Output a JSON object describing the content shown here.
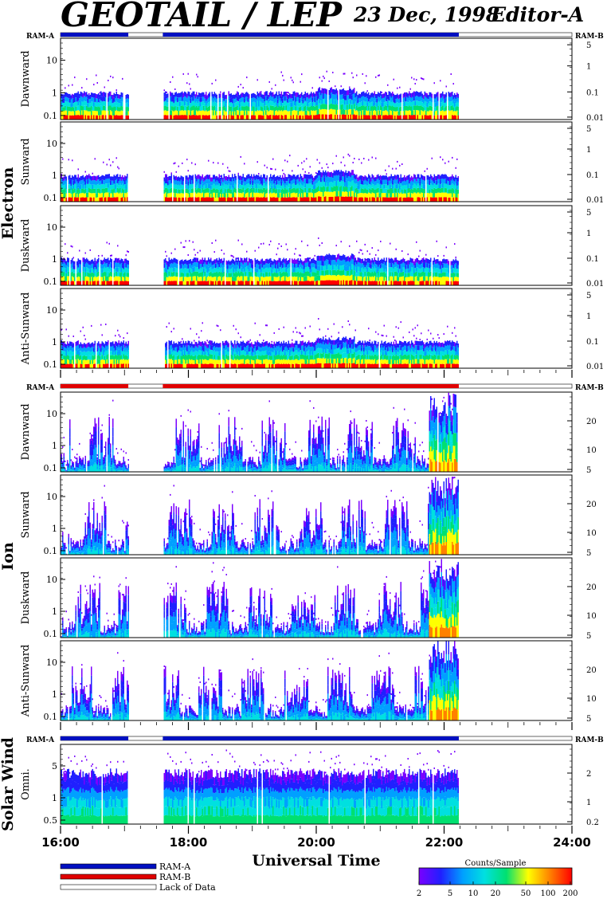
{
  "title": "GEOTAIL / LEP",
  "date": "23 Dec, 1998",
  "editor": "Editor-A",
  "groups": [
    {
      "label": "Electron",
      "ram_left": "RAM-A",
      "ram_right": "RAM-B",
      "ram_bar": "ram_a"
    },
    {
      "label": "Ion",
      "ram_left": "RAM-A",
      "ram_right": "RAM-B",
      "ram_bar": "ram_b"
    },
    {
      "label": "Solar Wind",
      "ram_left": "RAM-A",
      "ram_right": "RAM-B",
      "ram_bar": "ram_a"
    }
  ],
  "chart_data": {
    "type": "heatmap",
    "x_axis": {
      "label": "Universal Time",
      "ticks": [
        "16:00",
        "18:00",
        "20:00",
        "22:00",
        "24:00"
      ],
      "range_hours": [
        16,
        24
      ]
    },
    "data_coverage_ut": [
      [
        16.0,
        17.06
      ],
      [
        17.6,
        22.23
      ]
    ],
    "ram_periods_ut": [
      [
        16.0,
        17.06
      ],
      [
        17.6,
        22.23
      ]
    ],
    "panels": [
      {
        "group": "Electron",
        "name": "Dawnward",
        "yticks_left": [
          "10",
          "1",
          "0.1"
        ],
        "yticks_right": [
          "5",
          "1",
          "0.1",
          "0.01"
        ],
        "kind": "electron"
      },
      {
        "group": "Electron",
        "name": "Sunward",
        "yticks_left": [
          "10",
          "1",
          "0.1"
        ],
        "yticks_right": [
          "5",
          "1",
          "0.1",
          "0.01"
        ],
        "kind": "electron"
      },
      {
        "group": "Electron",
        "name": "Duskward",
        "yticks_left": [
          "10",
          "1",
          "0.1"
        ],
        "yticks_right": [
          "5",
          "1",
          "0.1",
          "0.01"
        ],
        "kind": "electron"
      },
      {
        "group": "Electron",
        "name": "Anti-Sunward",
        "yticks_left": [
          "10",
          "1",
          "0.1"
        ],
        "yticks_right": [
          "5",
          "1",
          "0.1",
          "0.01"
        ],
        "kind": "electron"
      },
      {
        "group": "Ion",
        "name": "Dawnward",
        "yticks_left": [
          "10",
          "1",
          "0.1"
        ],
        "yticks_right": [
          "20",
          "10",
          "5"
        ],
        "kind": "ion"
      },
      {
        "group": "Ion",
        "name": "Sunward",
        "yticks_left": [
          "10",
          "1",
          "0.1"
        ],
        "yticks_right": [
          "20",
          "10",
          "5"
        ],
        "kind": "ion"
      },
      {
        "group": "Ion",
        "name": "Duskward",
        "yticks_left": [
          "10",
          "1",
          "0.1"
        ],
        "yticks_right": [
          "20",
          "10",
          "5"
        ],
        "kind": "ion"
      },
      {
        "group": "Ion",
        "name": "Anti-Sunward",
        "yticks_left": [
          "10",
          "1",
          "0.1"
        ],
        "yticks_right": [
          "20",
          "10",
          "5"
        ],
        "kind": "ion"
      },
      {
        "group": "Solar Wind",
        "name": "Omni.",
        "yticks_left": [
          "5",
          "1",
          "0.5"
        ],
        "yticks_right": [
          "2",
          "1",
          "0.2"
        ],
        "kind": "sw"
      }
    ],
    "colorbar": {
      "label": "Counts/Sample",
      "ticks": [
        "2",
        "5",
        "10",
        "20",
        "50",
        "100",
        "200"
      ],
      "colors": [
        "#7a00ff",
        "#2020ff",
        "#00a0ff",
        "#00e0e0",
        "#00e070",
        "#ffff00",
        "#ff8000",
        "#ff0000"
      ]
    },
    "legend": [
      {
        "label": "RAM-A",
        "color": "#0010c0"
      },
      {
        "label": "RAM-B",
        "color": "#e00000"
      },
      {
        "label": "Lack of Data",
        "color": "#ffffff"
      }
    ]
  }
}
